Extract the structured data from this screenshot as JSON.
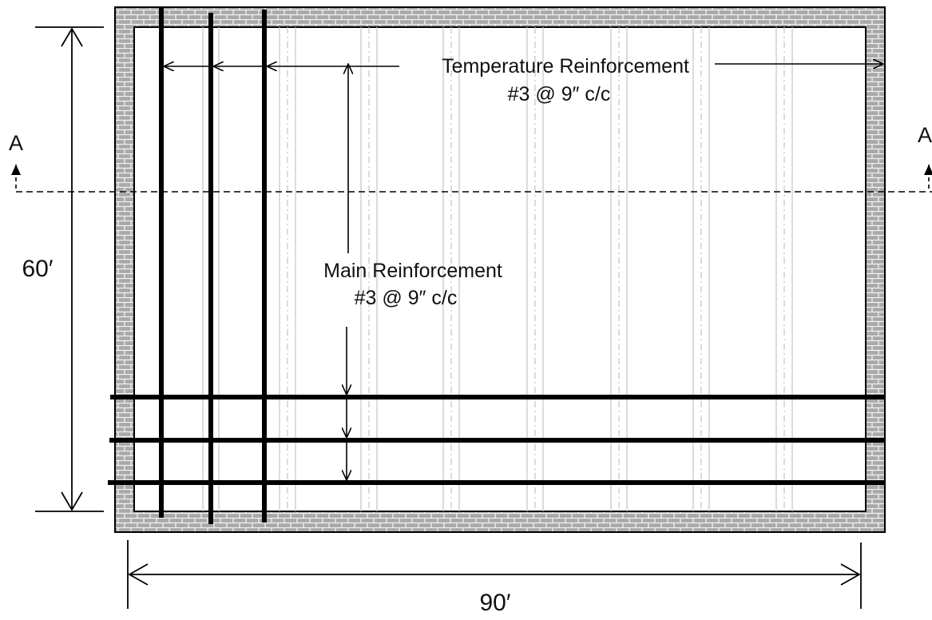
{
  "labels": {
    "temperature_title": "Temperature Reinforcement",
    "temperature_spec": "#3 @ 9″ c/c",
    "main_title": "Main Reinforcement",
    "main_spec": "#3 @ 9″ c/c",
    "height_dim": "60′",
    "width_dim": "90′",
    "section_left": "A",
    "section_right": "A"
  },
  "colors": {
    "wall_fill": "#a9a9a9",
    "brick_mortar": "#f2f2f2",
    "bar": "#000000",
    "joist_line": "#c8c8c8"
  },
  "icons": {
    "wall": "brick-hatch",
    "section_marker": "arrow-up-icon"
  }
}
